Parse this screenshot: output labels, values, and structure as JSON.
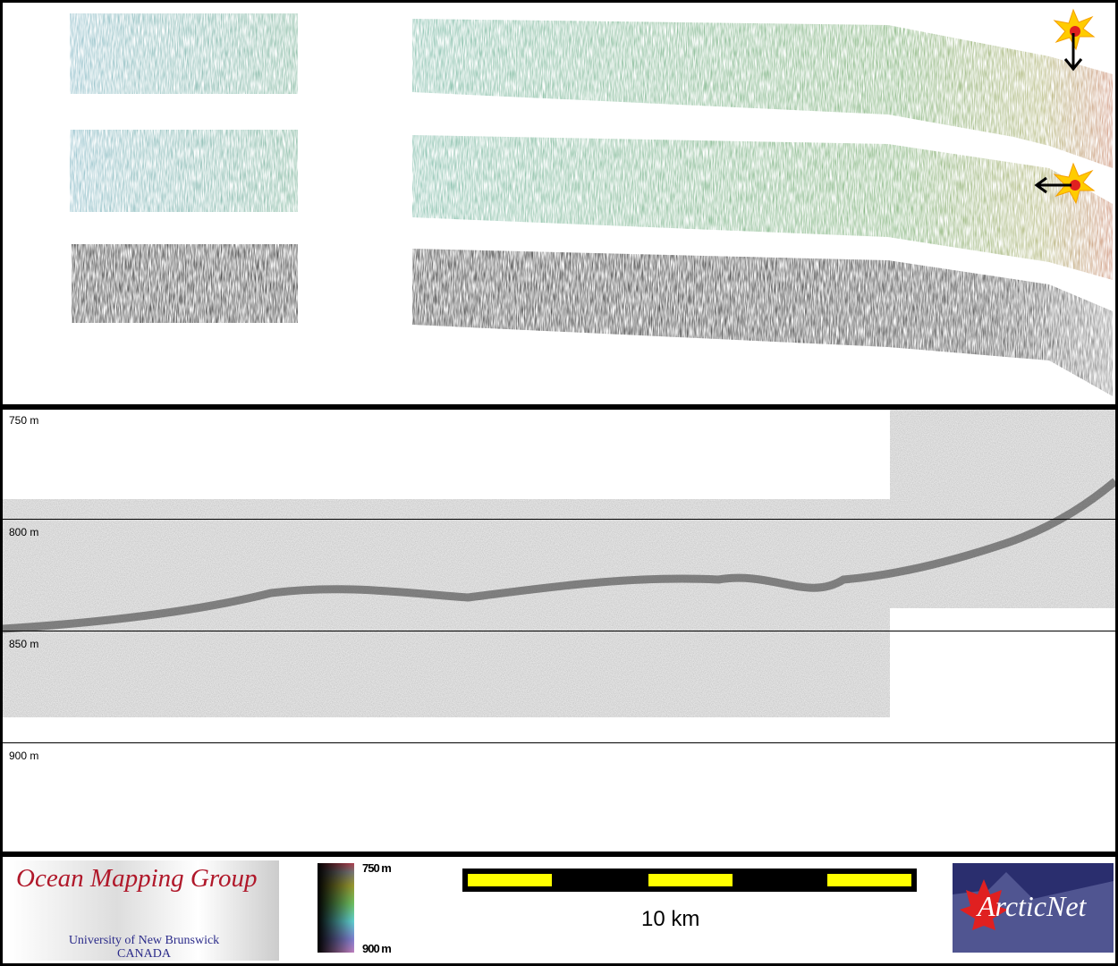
{
  "profile": {
    "depth_labels": [
      "750 m",
      "800 m",
      "850 m",
      "900 m"
    ]
  },
  "footer": {
    "logo_left": {
      "title": "Ocean Mapping Group",
      "university": "University of New Brunswick",
      "country": "CANADA"
    },
    "colorbar": {
      "top_label": "750 m",
      "bottom_label": "900 m"
    },
    "scale_bar": {
      "label": "10 km",
      "colors": [
        "#ffff00",
        "#000000"
      ]
    },
    "logo_right": {
      "text": "ArcticNet"
    }
  },
  "markers": [
    {
      "icon": "explosion-star-icon",
      "arrow": "down"
    },
    {
      "icon": "explosion-star-icon",
      "arrow": "left"
    }
  ]
}
